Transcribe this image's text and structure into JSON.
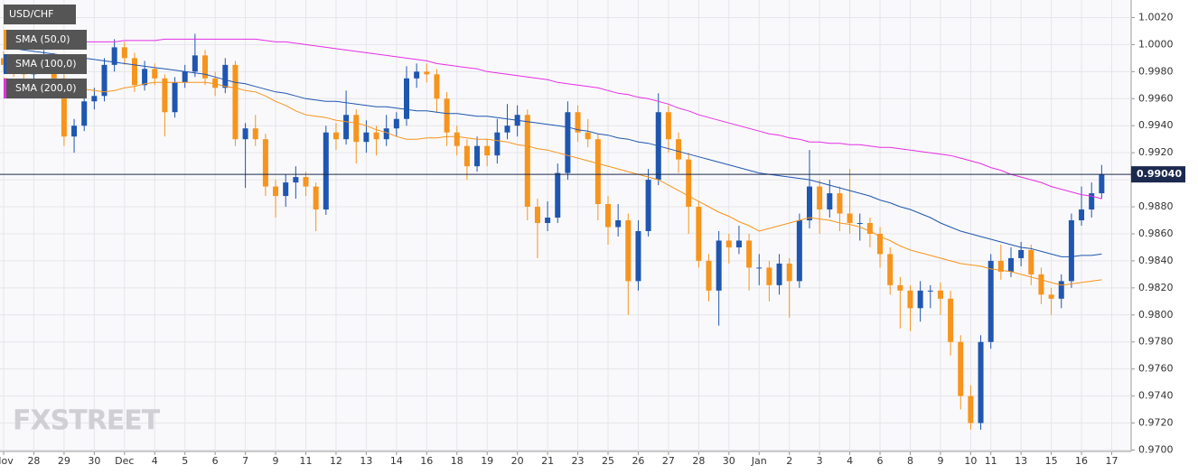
{
  "chart_data": {
    "type": "candlestick",
    "title": "USD/CHF",
    "watermark": "FXSTREET",
    "up_color": "#1f56b0",
    "down_color": "#f7941d",
    "grid": true,
    "ylim": [
      0.9699,
      1.0033
    ],
    "yticks": [
      {
        "value": 0.97,
        "label": "0.9700"
      },
      {
        "value": 0.972,
        "label": "0.9720"
      },
      {
        "value": 0.974,
        "label": "0.9740"
      },
      {
        "value": 0.976,
        "label": "0.9760"
      },
      {
        "value": 0.978,
        "label": "0.9780"
      },
      {
        "value": 0.98,
        "label": "0.9800"
      },
      {
        "value": 0.982,
        "label": "0.9820"
      },
      {
        "value": 0.984,
        "label": "0.9840"
      },
      {
        "value": 0.986,
        "label": "0.9860"
      },
      {
        "value": 0.988,
        "label": "0.9880"
      },
      {
        "value": 0.99,
        "label": "0.9900"
      },
      {
        "value": 0.992,
        "label": "0.9920"
      },
      {
        "value": 0.994,
        "label": "0.9940"
      },
      {
        "value": 0.996,
        "label": "0.9960"
      },
      {
        "value": 0.998,
        "label": "0.9980"
      },
      {
        "value": 1.0,
        "label": "1.0000"
      },
      {
        "value": 1.002,
        "label": "1.0020"
      }
    ],
    "current_price": {
      "value": 0.9904,
      "label": "0.99040"
    },
    "categories": [
      "Nov",
      null,
      null,
      "28",
      null,
      null,
      "29",
      null,
      null,
      "30",
      null,
      null,
      "Dec",
      null,
      null,
      "4",
      null,
      null,
      "5",
      null,
      null,
      "6",
      null,
      null,
      "7",
      null,
      null,
      "9",
      null,
      null,
      "11",
      null,
      null,
      "12",
      null,
      null,
      "13",
      null,
      null,
      "14",
      null,
      null,
      "16",
      null,
      null,
      "18",
      null,
      null,
      "19",
      null,
      null,
      "20",
      null,
      null,
      "21",
      null,
      null,
      "23",
      null,
      null,
      "25",
      null,
      null,
      "26",
      null,
      null,
      "27",
      null,
      null,
      "28",
      null,
      null,
      "30",
      null,
      null,
      "Jan",
      null,
      null,
      "2",
      null,
      null,
      "3",
      null,
      null,
      "4",
      null,
      null,
      "6",
      null,
      null,
      "8",
      null,
      null,
      "9",
      null,
      null,
      "10",
      null,
      "11",
      null,
      null,
      "13",
      null,
      null,
      "15",
      null,
      null,
      "16",
      null,
      null,
      "17"
    ],
    "ohlc": [
      [
        0.999,
        0.9995,
        0.998,
        0.9985
      ],
      [
        0.9985,
        0.999,
        0.9976,
        0.9982
      ],
      [
        0.9982,
        0.9986,
        0.9972,
        0.9978
      ],
      [
        0.9978,
        0.9992,
        0.9974,
        0.9986
      ],
      [
        0.9986,
        0.9996,
        0.9982,
        0.999
      ],
      [
        0.999,
        0.9994,
        0.997,
        0.9975
      ],
      [
        0.9975,
        0.9978,
        0.9925,
        0.9932
      ],
      [
        0.9932,
        0.9945,
        0.992,
        0.994
      ],
      [
        0.994,
        0.9962,
        0.9936,
        0.9958
      ],
      [
        0.9958,
        0.9968,
        0.9952,
        0.9962
      ],
      [
        0.9962,
        0.999,
        0.9958,
        0.9985
      ],
      [
        0.9985,
        1.0004,
        0.998,
        0.9998
      ],
      [
        0.9998,
        1.0002,
        0.9985,
        0.999
      ],
      [
        0.999,
        0.9994,
        0.9965,
        0.997
      ],
      [
        0.997,
        0.9988,
        0.9966,
        0.9982
      ],
      [
        0.9982,
        0.9986,
        0.997,
        0.9975
      ],
      [
        0.9975,
        0.9978,
        0.9932,
        0.995
      ],
      [
        0.995,
        0.9976,
        0.9946,
        0.9972
      ],
      [
        0.9972,
        0.9985,
        0.9968,
        0.998
      ],
      [
        0.998,
        1.0008,
        0.9976,
        0.9992
      ],
      [
        0.9992,
        0.9996,
        0.997,
        0.9975
      ],
      [
        0.9975,
        0.998,
        0.9962,
        0.9968
      ],
      [
        0.9968,
        0.999,
        0.9964,
        0.9985
      ],
      [
        0.9985,
        0.9988,
        0.9925,
        0.993
      ],
      [
        0.993,
        0.9942,
        0.9894,
        0.9938
      ],
      [
        0.9938,
        0.9948,
        0.9925,
        0.993
      ],
      [
        0.993,
        0.9934,
        0.9888,
        0.9895
      ],
      [
        0.9895,
        0.99,
        0.9872,
        0.9888
      ],
      [
        0.9888,
        0.9904,
        0.988,
        0.9898
      ],
      [
        0.9898,
        0.991,
        0.9886,
        0.9902
      ],
      [
        0.9902,
        0.9906,
        0.9888,
        0.9895
      ],
      [
        0.9895,
        0.9898,
        0.9862,
        0.9878
      ],
      [
        0.9878,
        0.994,
        0.9874,
        0.9935
      ],
      [
        0.9935,
        0.9942,
        0.9922,
        0.993
      ],
      [
        0.993,
        0.9966,
        0.9926,
        0.9948
      ],
      [
        0.9948,
        0.9952,
        0.9912,
        0.9928
      ],
      [
        0.9928,
        0.9944,
        0.992,
        0.9935
      ],
      [
        0.9935,
        0.994,
        0.9918,
        0.993
      ],
      [
        0.993,
        0.9948,
        0.9925,
        0.9938
      ],
      [
        0.9938,
        0.995,
        0.9932,
        0.9945
      ],
      [
        0.9945,
        0.9984,
        0.994,
        0.9975
      ],
      [
        0.9975,
        0.9986,
        0.9968,
        0.998
      ],
      [
        0.998,
        0.9986,
        0.9972,
        0.9978
      ],
      [
        0.9978,
        0.9982,
        0.995,
        0.996
      ],
      [
        0.996,
        0.9965,
        0.9925,
        0.9935
      ],
      [
        0.9935,
        0.994,
        0.9918,
        0.9925
      ],
      [
        0.9925,
        0.993,
        0.99,
        0.991
      ],
      [
        0.991,
        0.9932,
        0.9906,
        0.9925
      ],
      [
        0.9925,
        0.993,
        0.991,
        0.9918
      ],
      [
        0.9918,
        0.9945,
        0.9912,
        0.9935
      ],
      [
        0.9935,
        0.9956,
        0.993,
        0.994
      ],
      [
        0.994,
        0.9955,
        0.9932,
        0.9948
      ],
      [
        0.9948,
        0.9952,
        0.987,
        0.988
      ],
      [
        0.988,
        0.9886,
        0.9842,
        0.9868
      ],
      [
        0.9868,
        0.9884,
        0.9862,
        0.9872
      ],
      [
        0.9872,
        0.9912,
        0.9868,
        0.9905
      ],
      [
        0.9905,
        0.9958,
        0.99,
        0.995
      ],
      [
        0.995,
        0.9955,
        0.9928,
        0.9935
      ],
      [
        0.9935,
        0.9945,
        0.9924,
        0.993
      ],
      [
        0.993,
        0.9934,
        0.987,
        0.9882
      ],
      [
        0.9882,
        0.9888,
        0.9852,
        0.9865
      ],
      [
        0.9865,
        0.9882,
        0.9858,
        0.987
      ],
      [
        0.987,
        0.9875,
        0.98,
        0.9825
      ],
      [
        0.9825,
        0.987,
        0.9818,
        0.9862
      ],
      [
        0.9862,
        0.9908,
        0.9858,
        0.99
      ],
      [
        0.99,
        0.9964,
        0.9896,
        0.995
      ],
      [
        0.995,
        0.9955,
        0.992,
        0.993
      ],
      [
        0.993,
        0.9935,
        0.9905,
        0.9915
      ],
      [
        0.9915,
        0.992,
        0.986,
        0.988
      ],
      [
        0.988,
        0.9884,
        0.9835,
        0.984
      ],
      [
        0.984,
        0.9845,
        0.981,
        0.9818
      ],
      [
        0.9818,
        0.9862,
        0.9792,
        0.9855
      ],
      [
        0.9855,
        0.986,
        0.9838,
        0.985
      ],
      [
        0.985,
        0.9866,
        0.9845,
        0.9855
      ],
      [
        0.9855,
        0.986,
        0.9818,
        0.9835
      ],
      [
        0.9835,
        0.9845,
        0.9822,
        0.9835
      ],
      [
        0.9835,
        0.984,
        0.981,
        0.9822
      ],
      [
        0.9822,
        0.9845,
        0.9815,
        0.9838
      ],
      [
        0.9838,
        0.9842,
        0.9798,
        0.9825
      ],
      [
        0.9825,
        0.9875,
        0.982,
        0.987
      ],
      [
        0.987,
        0.9922,
        0.9864,
        0.9895
      ],
      [
        0.9895,
        0.99,
        0.986,
        0.9878
      ],
      [
        0.9878,
        0.99,
        0.9872,
        0.989
      ],
      [
        0.989,
        0.9895,
        0.9862,
        0.9875
      ],
      [
        0.9875,
        0.9908,
        0.986,
        0.9868
      ],
      [
        0.9868,
        0.9875,
        0.9855,
        0.9868
      ],
      [
        0.9868,
        0.9872,
        0.985,
        0.986
      ],
      [
        0.986,
        0.9865,
        0.9835,
        0.9845
      ],
      [
        0.9845,
        0.985,
        0.9815,
        0.9822
      ],
      [
        0.9822,
        0.9828,
        0.979,
        0.9818
      ],
      [
        0.9818,
        0.9822,
        0.9788,
        0.9805
      ],
      [
        0.9805,
        0.9825,
        0.9795,
        0.9818
      ],
      [
        0.9818,
        0.9822,
        0.9805,
        0.9818
      ],
      [
        0.9818,
        0.9824,
        0.98,
        0.9812
      ],
      [
        0.9812,
        0.9818,
        0.977,
        0.978
      ],
      [
        0.978,
        0.9785,
        0.973,
        0.974
      ],
      [
        0.974,
        0.9748,
        0.9715,
        0.972
      ],
      [
        0.972,
        0.9785,
        0.9715,
        0.978
      ],
      [
        0.978,
        0.9845,
        0.9775,
        0.984
      ],
      [
        0.984,
        0.9852,
        0.9826,
        0.9832
      ],
      [
        0.9832,
        0.985,
        0.9828,
        0.9842
      ],
      [
        0.9842,
        0.9854,
        0.9836,
        0.9848
      ],
      [
        0.9848,
        0.9852,
        0.9822,
        0.983
      ],
      [
        0.983,
        0.9835,
        0.9808,
        0.9815
      ],
      [
        0.9815,
        0.982,
        0.98,
        0.9812
      ],
      [
        0.9812,
        0.983,
        0.9805,
        0.9825
      ],
      [
        0.9825,
        0.9875,
        0.982,
        0.987
      ],
      [
        0.987,
        0.9895,
        0.9866,
        0.9878
      ],
      [
        0.9878,
        0.9898,
        0.9872,
        0.989
      ],
      [
        0.989,
        0.9911,
        0.9886,
        0.9904
      ],
      null
    ],
    "series": [
      {
        "name": "SMA (50,0)",
        "color": "#f7941d",
        "values": [
          0.9975,
          0.9974,
          0.9973,
          0.9972,
          0.9971,
          0.997,
          0.9969,
          0.9968,
          0.9967,
          0.9966,
          0.9965,
          0.9966,
          0.9968,
          0.9969,
          0.9971,
          0.9972,
          0.9972,
          0.9972,
          0.9972,
          0.9972,
          0.9972,
          0.9971,
          0.9969,
          0.9968,
          0.9966,
          0.9965,
          0.9962,
          0.9958,
          0.9955,
          0.9951,
          0.9948,
          0.9947,
          0.9946,
          0.9944,
          0.9943,
          0.9942,
          0.994,
          0.9937,
          0.9935,
          0.9932,
          0.993,
          0.993,
          0.9931,
          0.9931,
          0.9932,
          0.9932,
          0.9931,
          0.993,
          0.993,
          0.9929,
          0.9928,
          0.9926,
          0.9925,
          0.9923,
          0.9922,
          0.992,
          0.9918,
          0.9916,
          0.9914,
          0.9912,
          0.991,
          0.9908,
          0.9906,
          0.9904,
          0.9902,
          0.99,
          0.9896,
          0.9892,
          0.9888,
          0.9884,
          0.988,
          0.9876,
          0.9873,
          0.9869,
          0.9866,
          0.9862,
          0.9864,
          0.9866,
          0.9868,
          0.987,
          0.9872,
          0.9871,
          0.987,
          0.9868,
          0.9867,
          0.9865,
          0.9862,
          0.9858,
          0.9855,
          0.9851,
          0.9848,
          0.9846,
          0.9844,
          0.9842,
          0.984,
          0.9838,
          0.9837,
          0.9836,
          0.9834,
          0.9833,
          0.9832,
          0.983,
          0.9828,
          0.9826,
          0.9824,
          0.9822,
          0.9823,
          0.9824,
          0.9825,
          0.9826,
          null
        ]
      },
      {
        "name": "SMA (100,0)",
        "color": "#1f56b0",
        "values": [
          0.9998,
          0.9997,
          0.9996,
          0.9995,
          0.9994,
          0.9993,
          0.9992,
          0.9991,
          0.999,
          0.9989,
          0.9988,
          0.9987,
          0.9986,
          0.9985,
          0.9984,
          0.9983,
          0.9982,
          0.9981,
          0.998,
          0.9979,
          0.9978,
          0.9976,
          0.9974,
          0.9972,
          0.9971,
          0.9969,
          0.9967,
          0.9965,
          0.9964,
          0.9962,
          0.996,
          0.9959,
          0.9958,
          0.9958,
          0.9957,
          0.9956,
          0.9955,
          0.9954,
          0.9954,
          0.9953,
          0.9952,
          0.9951,
          0.9951,
          0.995,
          0.9949,
          0.9949,
          0.9948,
          0.9947,
          0.9947,
          0.9946,
          0.9945,
          0.9944,
          0.9943,
          0.9942,
          0.9941,
          0.994,
          0.9939,
          0.9937,
          0.9936,
          0.9934,
          0.9933,
          0.9931,
          0.993,
          0.9928,
          0.9927,
          0.9925,
          0.9923,
          0.9921,
          0.9919,
          0.9917,
          0.9915,
          0.9913,
          0.9911,
          0.9909,
          0.9907,
          0.9905,
          0.9904,
          0.9903,
          0.9902,
          0.9901,
          0.99,
          0.9898,
          0.9896,
          0.9894,
          0.9892,
          0.989,
          0.9888,
          0.9885,
          0.9883,
          0.988,
          0.9878,
          0.9875,
          0.9872,
          0.9868,
          0.9865,
          0.9862,
          0.986,
          0.9858,
          0.9856,
          0.9854,
          0.9852,
          0.985,
          0.9849,
          0.9847,
          0.9845,
          0.9843,
          0.9843,
          0.9844,
          0.9844,
          0.9845,
          null
        ]
      },
      {
        "name": "SMA (200,0)",
        "color": "#e62ee6",
        "values": [
          1.0,
          1.0,
          1.0,
          1.0001,
          1.0001,
          1.0001,
          1.0001,
          1.0001,
          1.0002,
          1.0002,
          1.0002,
          1.0002,
          1.0003,
          1.0003,
          1.0003,
          1.0003,
          1.0004,
          1.0004,
          1.0004,
          1.0004,
          1.0004,
          1.0004,
          1.0004,
          1.0004,
          1.0004,
          1.0004,
          1.0003,
          1.0002,
          1.0002,
          1.0001,
          1.0,
          0.9999,
          0.9998,
          0.9997,
          0.9996,
          0.9995,
          0.9994,
          0.9993,
          0.9992,
          0.9991,
          0.999,
          0.9989,
          0.9988,
          0.9986,
          0.9985,
          0.9984,
          0.9983,
          0.9982,
          0.998,
          0.9979,
          0.9978,
          0.9977,
          0.9976,
          0.9975,
          0.9974,
          0.9972,
          0.9971,
          0.997,
          0.9969,
          0.9968,
          0.9966,
          0.9964,
          0.9963,
          0.9961,
          0.996,
          0.9958,
          0.9956,
          0.9953,
          0.9951,
          0.9948,
          0.9946,
          0.9944,
          0.9942,
          0.994,
          0.9938,
          0.9936,
          0.9934,
          0.9933,
          0.9931,
          0.993,
          0.9928,
          0.9928,
          0.9927,
          0.9927,
          0.9926,
          0.9926,
          0.9925,
          0.9924,
          0.9924,
          0.9923,
          0.9922,
          0.9921,
          0.992,
          0.9919,
          0.9918,
          0.9916,
          0.9914,
          0.9912,
          0.9909,
          0.9907,
          0.9904,
          0.9902,
          0.99,
          0.9898,
          0.9895,
          0.9893,
          0.9891,
          0.9889,
          0.9888,
          0.9886,
          null
        ]
      }
    ]
  }
}
